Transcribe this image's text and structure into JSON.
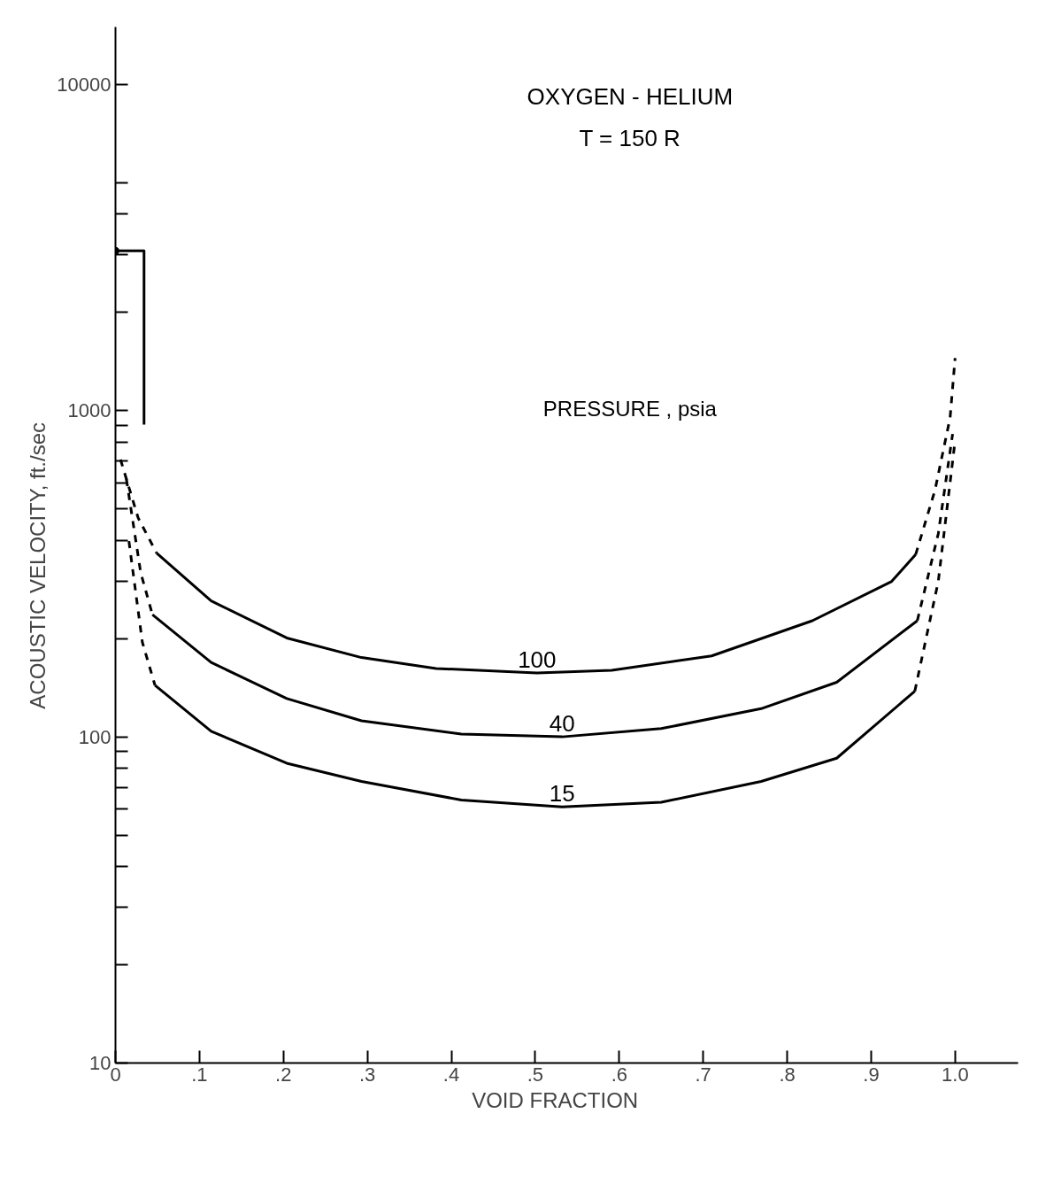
{
  "chart_data": {
    "type": "line",
    "title": "OXYGEN - HELIUM",
    "subtitle": "T = 150 R",
    "legend_title": "PRESSURE , psia",
    "xlabel": "VOID     FRACTION",
    "ylabel": "ACOUSTIC     VELOCITY,    ft./sec",
    "log": "y",
    "grid": false,
    "xlim": [
      0,
      1.075
    ],
    "ylim": [
      10,
      15000
    ],
    "xticks": [
      0,
      {
        "value": 0.1,
        "label": ".1"
      },
      {
        "value": 0.2,
        "label": ".2"
      },
      {
        "value": 0.3,
        "label": ".3"
      },
      {
        "value": 0.4,
        "label": ".4"
      },
      {
        "value": 0.5,
        "label": ".5"
      },
      {
        "value": 0.6,
        "label": ".6"
      },
      {
        "value": 0.7,
        "label": ".7"
      },
      {
        "value": 0.8,
        "label": ".8"
      },
      {
        "value": 0.9,
        "label": ".9"
      },
      {
        "value": 1.0,
        "label": "1.0"
      }
    ],
    "yticks": [
      10,
      {
        "value": 20,
        "label": null
      },
      {
        "value": 30,
        "label": null
      },
      {
        "value": 40,
        "label": null
      },
      {
        "value": 50,
        "label": null
      },
      {
        "value": 60,
        "label": null
      },
      {
        "value": 70,
        "label": null
      },
      {
        "value": 80,
        "label": null
      },
      {
        "value": 90,
        "label": null
      },
      100,
      {
        "value": 200,
        "label": null
      },
      {
        "value": 300,
        "label": null
      },
      {
        "value": 400,
        "label": null
      },
      {
        "value": 500,
        "label": null
      },
      {
        "value": 600,
        "label": null
      },
      {
        "value": 700,
        "label": null
      },
      {
        "value": 800,
        "label": null
      },
      {
        "value": 900,
        "label": null
      },
      1000,
      {
        "value": 2000,
        "label": null
      },
      {
        "value": 3000,
        "label": null
      },
      {
        "value": 4000,
        "label": null
      },
      {
        "value": 5000,
        "label": null
      },
      10000
    ],
    "series": [
      {
        "name": "100",
        "color": "#000000",
        "line_style": "solid",
        "x": [
          0.049,
          0.114,
          0.204,
          0.293,
          0.382,
          0.502,
          0.591,
          0.71,
          0.83,
          0.924,
          0.953
        ],
        "values": [
          366,
          261,
          201,
          175,
          162,
          157,
          160,
          177,
          227,
          299,
          362
        ]
      },
      {
        "name": "40",
        "color": "#000000",
        "line_style": "solid",
        "x": [
          0.044,
          0.114,
          0.204,
          0.293,
          0.412,
          0.532,
          0.65,
          0.769,
          0.859,
          0.955
        ],
        "values": [
          237,
          169,
          131,
          112,
          102,
          100,
          106,
          122,
          147,
          227
        ]
      },
      {
        "name": "15",
        "color": "#000000",
        "line_style": "solid",
        "x": [
          0.047,
          0.114,
          0.204,
          0.293,
          0.412,
          0.532,
          0.65,
          0.769,
          0.859,
          0.952
        ],
        "values": [
          144,
          104,
          83,
          73,
          64,
          61,
          63,
          73,
          86,
          138
        ]
      },
      {
        "color": "#000000",
        "line_style": "dashed",
        "x": [
          0.006,
          0.027,
          0.049
        ],
        "values": [
          708,
          469,
          366
        ]
      },
      {
        "color": "#000000",
        "line_style": "dashed",
        "x": [
          0.013,
          0.03,
          0.044
        ],
        "values": [
          617,
          319,
          237
        ]
      },
      {
        "color": "#000000",
        "line_style": "dashed",
        "x": [
          0.016,
          0.032,
          0.047
        ],
        "values": [
          398,
          195,
          144
        ]
      },
      {
        "color": "#000000",
        "line_style": "dashed",
        "x": [
          0.953,
          0.976,
          0.994,
          1.0
        ],
        "values": [
          362,
          570,
          950,
          1450
        ]
      },
      {
        "color": "#000000",
        "line_style": "dashed",
        "x": [
          0.955,
          0.98,
          0.997
        ],
        "values": [
          227,
          420,
          848
        ]
      },
      {
        "color": "#000000",
        "line_style": "dashed",
        "x": [
          0.952,
          0.98,
          1.0
        ],
        "values": [
          138,
          300,
          810
        ]
      },
      {
        "color": "#000000",
        "line_style": "solid",
        "x": [
          0,
          0.034,
          0.034
        ],
        "values": [
          3090,
          3090,
          906
        ]
      },
      {
        "type": "scatter",
        "marker": "circle",
        "color": "#000000",
        "x": [
          0
        ],
        "values": [
          3090
        ]
      }
    ]
  }
}
